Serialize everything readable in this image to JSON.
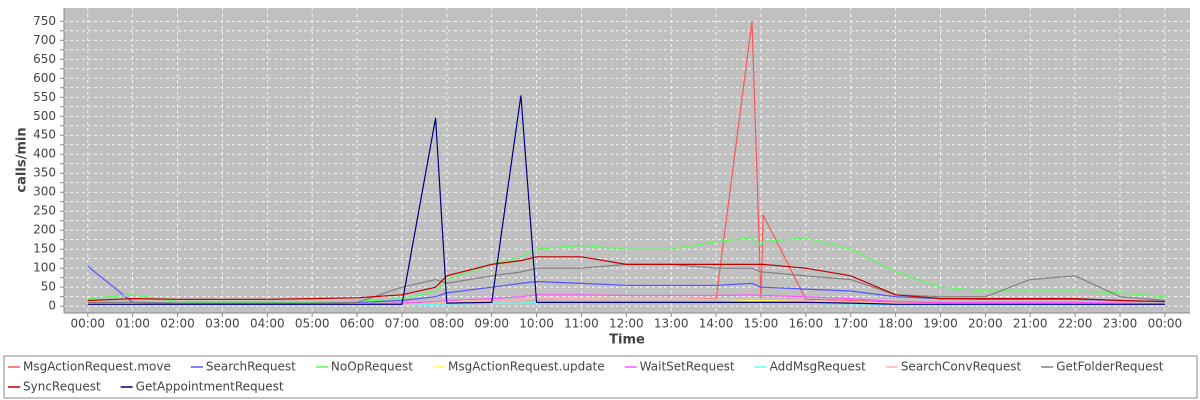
{
  "chart_data": {
    "type": "line",
    "y_label": "calls/min",
    "x_label": "Time",
    "x": [
      0,
      1,
      2,
      3,
      4,
      5,
      6,
      7,
      7.75,
      8,
      9,
      9.65,
      10,
      11,
      12,
      13,
      14,
      14.8,
      15,
      15.05,
      16,
      17,
      18,
      19,
      20,
      21,
      22,
      23,
      24
    ],
    "xlim": [
      -0.53,
      24.56
    ],
    "xticks": [
      {
        "value": 0,
        "label": "00:00"
      },
      {
        "value": 1,
        "label": "01:00"
      },
      {
        "value": 2,
        "label": "02:00"
      },
      {
        "value": 3,
        "label": "03:00"
      },
      {
        "value": 4,
        "label": "04:00"
      },
      {
        "value": 5,
        "label": "05:00"
      },
      {
        "value": 6,
        "label": "06:00"
      },
      {
        "value": 7,
        "label": "07:00"
      },
      {
        "value": 8,
        "label": "08:00"
      },
      {
        "value": 9,
        "label": "09:00"
      },
      {
        "value": 10,
        "label": "10:00"
      },
      {
        "value": 11,
        "label": "11:00"
      },
      {
        "value": 12,
        "label": "12:00"
      },
      {
        "value": 13,
        "label": "13:00"
      },
      {
        "value": 14,
        "label": "14:00"
      },
      {
        "value": 15,
        "label": "15:00"
      },
      {
        "value": 16,
        "label": "16:00"
      },
      {
        "value": 17,
        "label": "17:00"
      },
      {
        "value": 18,
        "label": "18:00"
      },
      {
        "value": 19,
        "label": "19:00"
      },
      {
        "value": 20,
        "label": "20:00"
      },
      {
        "value": 21,
        "label": "21:00"
      },
      {
        "value": 22,
        "label": "22:00"
      },
      {
        "value": 23,
        "label": "23:00"
      },
      {
        "value": 24,
        "label": "00:00"
      }
    ],
    "ylim": [
      -18,
      785
    ],
    "yticks": [
      0,
      25,
      50,
      75,
      100,
      125,
      150,
      175,
      200,
      225,
      250,
      275,
      300,
      325,
      350,
      375,
      400,
      425,
      450,
      475,
      500,
      525,
      550,
      575,
      600,
      625,
      650,
      675,
      700,
      725,
      750
    ],
    "grid": true,
    "legend": "bottom",
    "series": [
      {
        "name": "MsgActionRequest.move",
        "color": "#ff5555",
        "values": [
          5,
          5,
          5,
          5,
          5,
          5,
          5,
          8,
          10,
          12,
          15,
          15,
          18,
          20,
          18,
          18,
          20,
          750,
          20,
          240,
          18,
          15,
          10,
          8,
          8,
          8,
          8,
          6,
          5
        ]
      },
      {
        "name": "SearchRequest",
        "color": "#5555ff",
        "values": [
          105,
          10,
          8,
          8,
          8,
          8,
          10,
          15,
          25,
          35,
          50,
          60,
          65,
          60,
          55,
          55,
          55,
          60,
          50,
          50,
          45,
          40,
          25,
          20,
          18,
          18,
          18,
          15,
          12
        ]
      },
      {
        "name": "NoOpRequest",
        "color": "#55ff55",
        "values": [
          20,
          30,
          12,
          10,
          10,
          10,
          12,
          20,
          40,
          70,
          110,
          130,
          150,
          160,
          150,
          150,
          170,
          180,
          160,
          170,
          180,
          150,
          90,
          50,
          40,
          40,
          40,
          35,
          25
        ]
      },
      {
        "name": "MsgActionRequest.update",
        "color": "#ffff55",
        "values": [
          2,
          2,
          2,
          2,
          2,
          2,
          2,
          5,
          10,
          12,
          15,
          15,
          20,
          20,
          18,
          18,
          18,
          15,
          15,
          15,
          15,
          12,
          8,
          5,
          5,
          5,
          5,
          4,
          3
        ]
      },
      {
        "name": "WaitSetRequest",
        "color": "#ff55ff",
        "values": [
          5,
          5,
          5,
          5,
          5,
          5,
          5,
          8,
          12,
          15,
          20,
          25,
          30,
          30,
          28,
          28,
          28,
          30,
          28,
          28,
          25,
          20,
          12,
          10,
          10,
          10,
          10,
          8,
          6
        ]
      },
      {
        "name": "AddMsgRequest",
        "color": "#55ffff",
        "values": [
          2,
          2,
          2,
          2,
          2,
          2,
          2,
          3,
          5,
          6,
          8,
          8,
          10,
          10,
          10,
          10,
          10,
          10,
          10,
          10,
          8,
          6,
          4,
          3,
          3,
          3,
          3,
          3,
          2
        ]
      },
      {
        "name": "SearchConvRequest",
        "color": "#ffafaf",
        "values": [
          3,
          3,
          3,
          3,
          3,
          3,
          3,
          5,
          8,
          10,
          15,
          15,
          20,
          20,
          18,
          18,
          18,
          18,
          18,
          18,
          15,
          12,
          8,
          6,
          6,
          6,
          6,
          5,
          4
        ]
      },
      {
        "name": "GetFolderRequest",
        "color": "#808080",
        "values": [
          10,
          10,
          8,
          8,
          8,
          8,
          10,
          50,
          70,
          60,
          80,
          90,
          100,
          100,
          110,
          110,
          100,
          100,
          90,
          90,
          80,
          70,
          30,
          25,
          25,
          70,
          80,
          25,
          15
        ]
      },
      {
        "name": "SyncRequest",
        "color": "#c00000",
        "values": [
          15,
          20,
          18,
          18,
          18,
          20,
          22,
          30,
          50,
          80,
          110,
          120,
          130,
          130,
          110,
          110,
          110,
          110,
          110,
          110,
          100,
          80,
          30,
          20,
          20,
          20,
          20,
          15,
          12
        ]
      },
      {
        "name": "GetAppointmentRequest",
        "color": "#000080",
        "values": [
          5,
          5,
          5,
          5,
          5,
          5,
          5,
          5,
          495,
          8,
          10,
          555,
          10,
          10,
          10,
          10,
          10,
          10,
          10,
          10,
          10,
          8,
          5,
          5,
          5,
          5,
          5,
          5,
          5
        ]
      }
    ]
  }
}
